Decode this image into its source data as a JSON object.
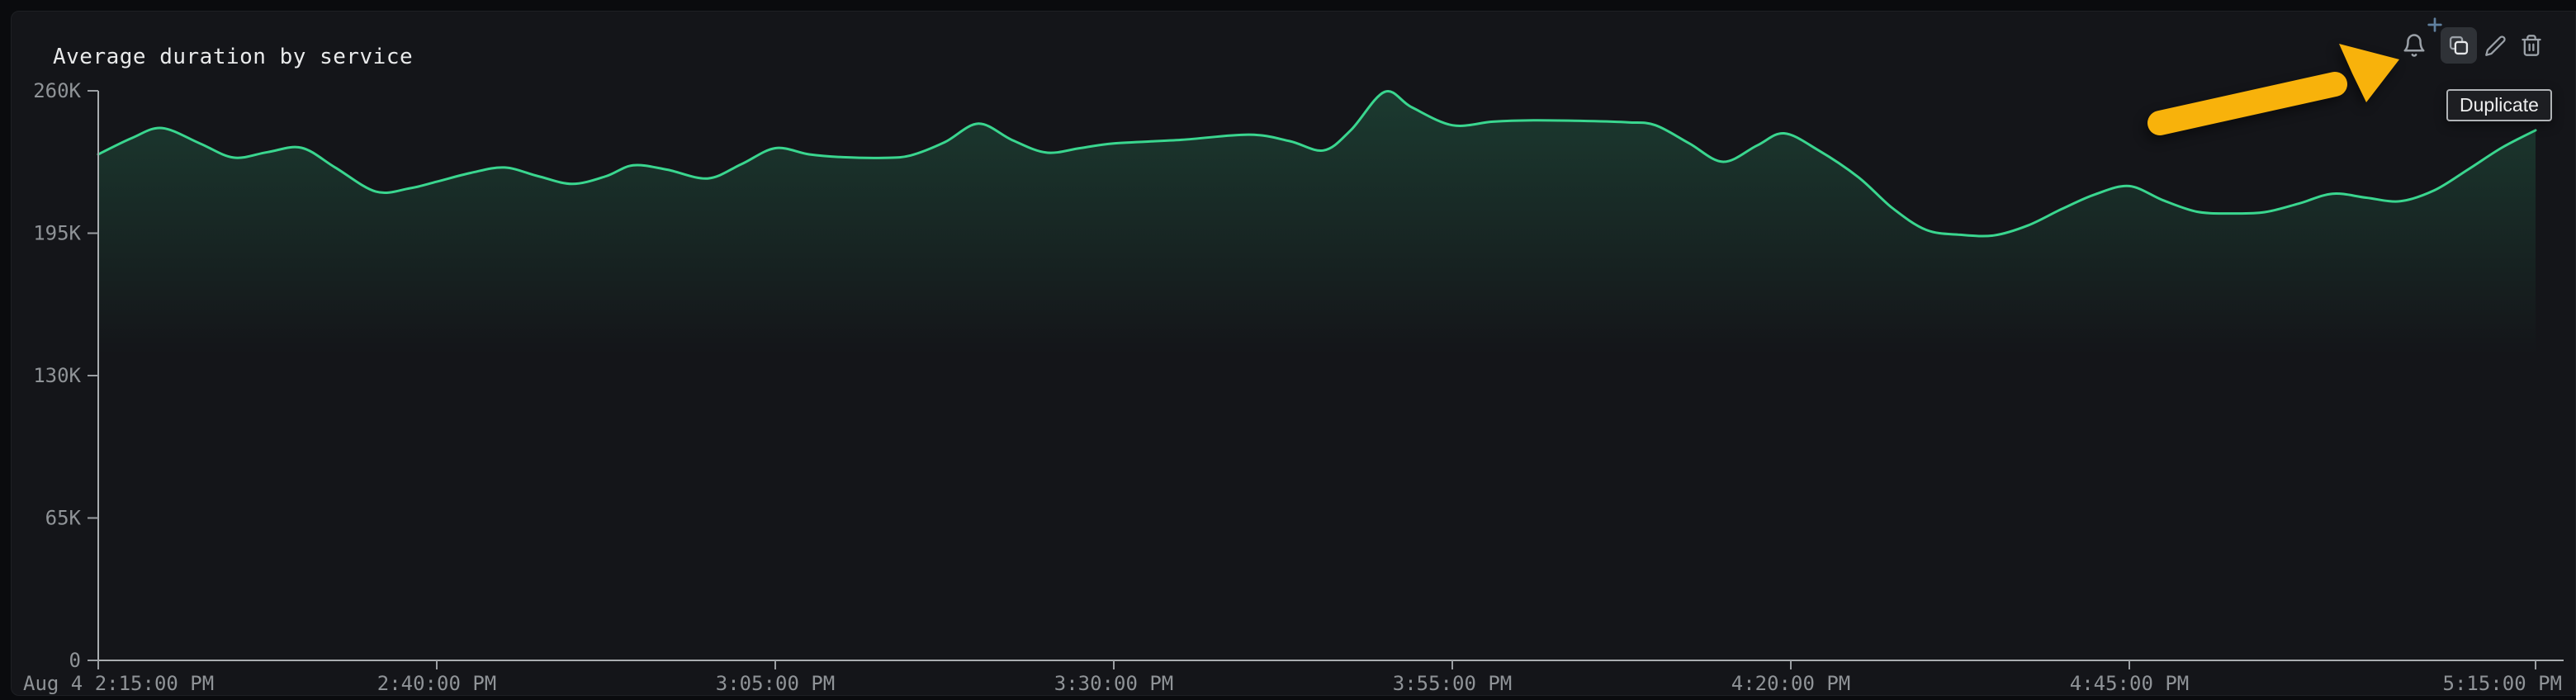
{
  "panel": {
    "title": "Average duration by service"
  },
  "toolbar": {
    "actions": [
      {
        "id": "create-alert",
        "label": "Create alert",
        "icon": "bell-plus-icon",
        "active": false
      },
      {
        "id": "duplicate",
        "label": "Duplicate",
        "icon": "copy-icon",
        "active": true
      },
      {
        "id": "edit",
        "label": "Edit",
        "icon": "pencil-icon",
        "active": false
      },
      {
        "id": "delete",
        "label": "Delete",
        "icon": "trash-icon",
        "active": false
      }
    ]
  },
  "tooltip": {
    "label": "Duplicate",
    "attached_to": "duplicate-button"
  },
  "annotation": {
    "kind": "hand-drawn-arrow",
    "color": "#f8b20b",
    "points_to": "duplicate-button"
  },
  "colors": {
    "page_bg": "#0a0b0e",
    "panel_bg": "#141519",
    "line_green": "#3ad68f",
    "axis_line": "#a9adb0",
    "axis_label": "#8f9397",
    "icon_gray": "#9ba1a8",
    "icon_active": "#e6e8ea",
    "plus_blue": "#60809f",
    "arrow_yellow": "#f8b20b"
  },
  "chart_data": {
    "type": "line",
    "title": "Average duration by service",
    "grid": false,
    "legend_position": "none",
    "xlabel": "",
    "ylabel": "",
    "x_axis": {
      "unit": "time",
      "range_minutes": [
        0,
        180
      ],
      "ticks": [
        {
          "label": "Aug 4 2:15:00 PM",
          "minutes": 0
        },
        {
          "label": "2:40:00 PM",
          "minutes": 25
        },
        {
          "label": "3:05:00 PM",
          "minutes": 50
        },
        {
          "label": "3:30:00 PM",
          "minutes": 75
        },
        {
          "label": "3:55:00 PM",
          "minutes": 100
        },
        {
          "label": "4:20:00 PM",
          "minutes": 125
        },
        {
          "label": "4:45:00 PM",
          "minutes": 150
        },
        {
          "label": "5:15:00 PM",
          "minutes": 180
        }
      ]
    },
    "y_axis": {
      "range": [
        0,
        260000
      ],
      "ticks": [
        {
          "label": "0",
          "value": 0
        },
        {
          "label": "65K",
          "value": 65000
        },
        {
          "label": "130K",
          "value": 130000
        },
        {
          "label": "195K",
          "value": 195000
        },
        {
          "label": "260K",
          "value": 260000
        }
      ]
    },
    "series": [
      {
        "name": "average duration",
        "color": "#3ad68f",
        "fill": "opacity-gradient",
        "points": [
          [
            0,
            231000
          ],
          [
            2.5,
            238500
          ],
          [
            4.7,
            243000
          ],
          [
            7.5,
            236000
          ],
          [
            10,
            229500
          ],
          [
            12.5,
            232000
          ],
          [
            15,
            234000
          ],
          [
            17.5,
            225000
          ],
          [
            20.5,
            214000
          ],
          [
            23,
            215500
          ],
          [
            25,
            218500
          ],
          [
            27.5,
            222500
          ],
          [
            30,
            225000
          ],
          [
            32.5,
            221000
          ],
          [
            35,
            217500
          ],
          [
            37.5,
            221000
          ],
          [
            39.5,
            226000
          ],
          [
            42,
            224000
          ],
          [
            45,
            220000
          ],
          [
            47.5,
            226500
          ],
          [
            50,
            233800
          ],
          [
            52.5,
            231000
          ],
          [
            55,
            229700
          ],
          [
            58,
            229400
          ],
          [
            60,
            230500
          ],
          [
            62.5,
            236500
          ],
          [
            65,
            245000
          ],
          [
            67.5,
            237500
          ],
          [
            70,
            231800
          ],
          [
            72.5,
            233800
          ],
          [
            75,
            236000
          ],
          [
            80,
            237600
          ],
          [
            85,
            240000
          ],
          [
            88,
            237000
          ],
          [
            90.5,
            232800
          ],
          [
            92.5,
            242000
          ],
          [
            95,
            259500
          ],
          [
            97,
            252500
          ],
          [
            100,
            244300
          ],
          [
            103,
            245900
          ],
          [
            106,
            246500
          ],
          [
            110,
            246200
          ],
          [
            113,
            245600
          ],
          [
            115,
            244300
          ],
          [
            117.5,
            236000
          ],
          [
            120,
            227600
          ],
          [
            122.5,
            235000
          ],
          [
            124.5,
            240600
          ],
          [
            127,
            233000
          ],
          [
            130,
            220500
          ],
          [
            132.5,
            206500
          ],
          [
            135,
            196500
          ],
          [
            137.5,
            194300
          ],
          [
            140,
            194000
          ],
          [
            142.5,
            198500
          ],
          [
            145,
            206000
          ],
          [
            147.5,
            212800
          ],
          [
            150,
            216500
          ],
          [
            152.5,
            210000
          ],
          [
            155,
            204800
          ],
          [
            157.5,
            204000
          ],
          [
            160,
            204600
          ],
          [
            162.5,
            208500
          ],
          [
            165,
            213000
          ],
          [
            167.5,
            211200
          ],
          [
            170,
            209600
          ],
          [
            172.5,
            214500
          ],
          [
            175,
            224000
          ],
          [
            177.5,
            234000
          ],
          [
            180,
            242000
          ]
        ]
      }
    ]
  }
}
